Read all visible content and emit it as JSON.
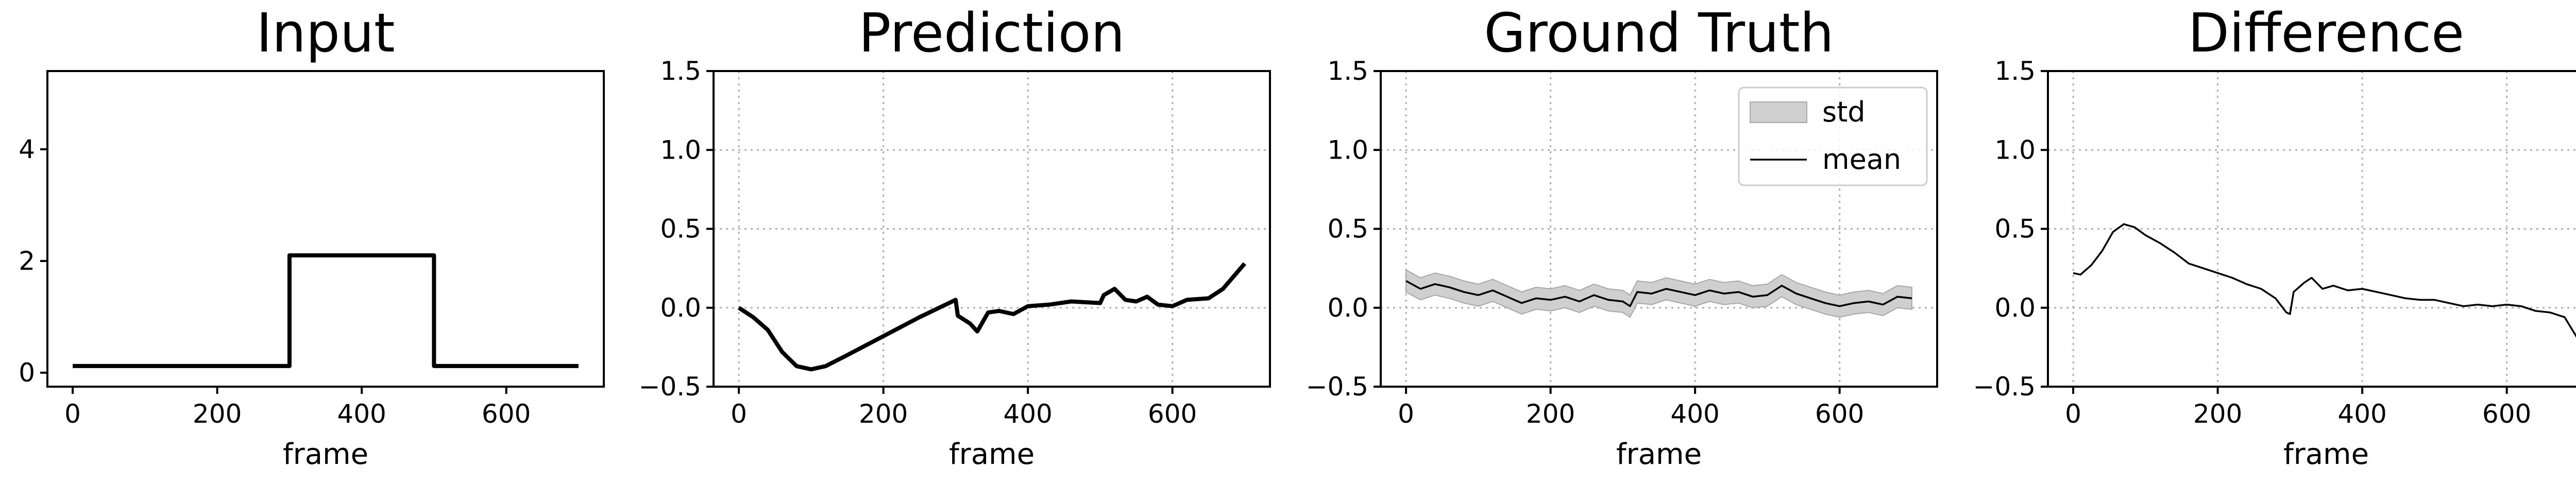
{
  "chart_data": [
    {
      "type": "line",
      "title": "Input",
      "xlabel": "frame",
      "ylabel": "",
      "xlim": [
        -35,
        735
      ],
      "ylim": [
        -0.25,
        5.4
      ],
      "xticks": [
        "0",
        "200",
        "400",
        "600"
      ],
      "yticks": [
        "0",
        "2",
        "4"
      ],
      "grid": false,
      "series": [
        {
          "values": [
            [
              0,
              0.12
            ],
            [
              300,
              0.12
            ],
            [
              300,
              2.1
            ],
            [
              500,
              2.1
            ],
            [
              500,
              0.12
            ],
            [
              700,
              0.12
            ]
          ]
        }
      ]
    },
    {
      "type": "line",
      "title": "Prediction",
      "xlabel": "frame",
      "ylabel": "",
      "xlim": [
        -35,
        735
      ],
      "ylim": [
        -0.5,
        1.5
      ],
      "xticks": [
        "0",
        "200",
        "400",
        "600"
      ],
      "yticks": [
        "−0.5",
        "0.0",
        "0.5",
        "1.0",
        "1.5"
      ],
      "grid": true,
      "series": [
        {
          "values": [
            [
              0,
              0.0
            ],
            [
              20,
              -0.06
            ],
            [
              40,
              -0.14
            ],
            [
              60,
              -0.28
            ],
            [
              80,
              -0.37
            ],
            [
              100,
              -0.39
            ],
            [
              120,
              -0.37
            ],
            [
              150,
              -0.3
            ],
            [
              200,
              -0.18
            ],
            [
              250,
              -0.06
            ],
            [
              300,
              0.05
            ],
            [
              303,
              -0.05
            ],
            [
              320,
              -0.1
            ],
            [
              330,
              -0.15
            ],
            [
              345,
              -0.03
            ],
            [
              360,
              -0.02
            ],
            [
              380,
              -0.04
            ],
            [
              400,
              0.01
            ],
            [
              430,
              0.02
            ],
            [
              460,
              0.04
            ],
            [
              500,
              0.03
            ],
            [
              505,
              0.08
            ],
            [
              520,
              0.12
            ],
            [
              535,
              0.05
            ],
            [
              550,
              0.04
            ],
            [
              565,
              0.07
            ],
            [
              580,
              0.02
            ],
            [
              600,
              0.01
            ],
            [
              620,
              0.05
            ],
            [
              650,
              0.06
            ],
            [
              670,
              0.12
            ],
            [
              700,
              0.28
            ]
          ]
        }
      ]
    },
    {
      "type": "line",
      "title": "Ground Truth",
      "xlabel": "frame",
      "ylabel": "",
      "xlim": [
        -35,
        735
      ],
      "ylim": [
        -0.5,
        1.5
      ],
      "xticks": [
        "0",
        "200",
        "400",
        "600"
      ],
      "yticks": [
        "−0.5",
        "0.0",
        "0.5",
        "1.0",
        "1.5"
      ],
      "grid": true,
      "legend": {
        "position": "top-right",
        "entries": [
          "std",
          "mean"
        ]
      },
      "series": [
        {
          "name": "mean",
          "values": [
            [
              0,
              0.17
            ],
            [
              20,
              0.12
            ],
            [
              40,
              0.15
            ],
            [
              60,
              0.13
            ],
            [
              80,
              0.1
            ],
            [
              100,
              0.08
            ],
            [
              120,
              0.11
            ],
            [
              140,
              0.07
            ],
            [
              160,
              0.03
            ],
            [
              180,
              0.06
            ],
            [
              200,
              0.05
            ],
            [
              220,
              0.07
            ],
            [
              240,
              0.04
            ],
            [
              260,
              0.08
            ],
            [
              280,
              0.05
            ],
            [
              300,
              0.04
            ],
            [
              310,
              0.01
            ],
            [
              320,
              0.1
            ],
            [
              340,
              0.09
            ],
            [
              360,
              0.12
            ],
            [
              380,
              0.1
            ],
            [
              400,
              0.08
            ],
            [
              420,
              0.11
            ],
            [
              440,
              0.09
            ],
            [
              460,
              0.1
            ],
            [
              480,
              0.07
            ],
            [
              500,
              0.08
            ],
            [
              520,
              0.14
            ],
            [
              540,
              0.09
            ],
            [
              560,
              0.06
            ],
            [
              580,
              0.03
            ],
            [
              600,
              0.01
            ],
            [
              620,
              0.03
            ],
            [
              640,
              0.04
            ],
            [
              660,
              0.02
            ],
            [
              680,
              0.07
            ],
            [
              700,
              0.06
            ]
          ]
        },
        {
          "name": "std",
          "values": [
            0.07
          ]
        }
      ]
    },
    {
      "type": "line",
      "title": "Difference",
      "xlabel": "frame",
      "ylabel": "",
      "xlim": [
        -35,
        735
      ],
      "ylim": [
        -0.5,
        1.5
      ],
      "xticks": [
        "0",
        "200",
        "400",
        "600"
      ],
      "yticks": [
        "−0.5",
        "0.0",
        "0.5",
        "1.0",
        "1.5"
      ],
      "grid": true,
      "series": [
        {
          "values": [
            [
              0,
              0.22
            ],
            [
              10,
              0.21
            ],
            [
              25,
              0.27
            ],
            [
              40,
              0.36
            ],
            [
              55,
              0.48
            ],
            [
              70,
              0.53
            ],
            [
              85,
              0.51
            ],
            [
              100,
              0.46
            ],
            [
              120,
              0.41
            ],
            [
              140,
              0.35
            ],
            [
              160,
              0.28
            ],
            [
              180,
              0.25
            ],
            [
              200,
              0.22
            ],
            [
              220,
              0.19
            ],
            [
              240,
              0.15
            ],
            [
              260,
              0.12
            ],
            [
              280,
              0.06
            ],
            [
              295,
              -0.03
            ],
            [
              300,
              -0.04
            ],
            [
              305,
              0.1
            ],
            [
              320,
              0.16
            ],
            [
              330,
              0.19
            ],
            [
              345,
              0.12
            ],
            [
              360,
              0.14
            ],
            [
              380,
              0.11
            ],
            [
              400,
              0.12
            ],
            [
              420,
              0.1
            ],
            [
              440,
              0.08
            ],
            [
              460,
              0.06
            ],
            [
              480,
              0.05
            ],
            [
              500,
              0.05
            ],
            [
              520,
              0.03
            ],
            [
              540,
              0.01
            ],
            [
              560,
              0.02
            ],
            [
              580,
              0.01
            ],
            [
              600,
              0.02
            ],
            [
              620,
              0.01
            ],
            [
              640,
              -0.02
            ],
            [
              660,
              -0.03
            ],
            [
              680,
              -0.06
            ],
            [
              700,
              -0.21
            ]
          ]
        }
      ]
    }
  ]
}
